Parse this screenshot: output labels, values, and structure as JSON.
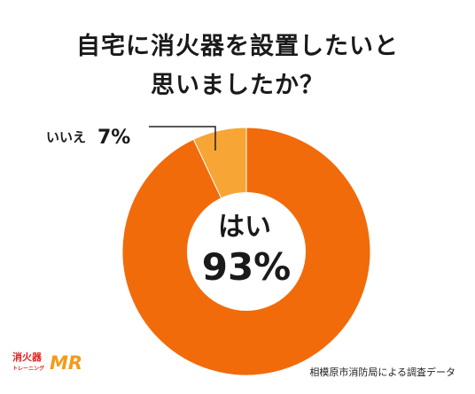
{
  "title_line1": "自宅に消火器を設置したいと",
  "title_line2": "思いましたか？",
  "chart_data": {
    "type": "pie",
    "style": "donut",
    "slices": [
      {
        "label": "はい",
        "value": 93,
        "display": "93%",
        "color": "#f26b0a"
      },
      {
        "label": "いいえ",
        "value": 7,
        "display": "7%",
        "color": "#f7a535"
      }
    ],
    "start": "top, clockwise (いいえ ends at top)"
  },
  "logo": {
    "main": "消火器",
    "sub": "トレーニング",
    "mr": "MR"
  },
  "source": "相模原市消防局による調査データ"
}
